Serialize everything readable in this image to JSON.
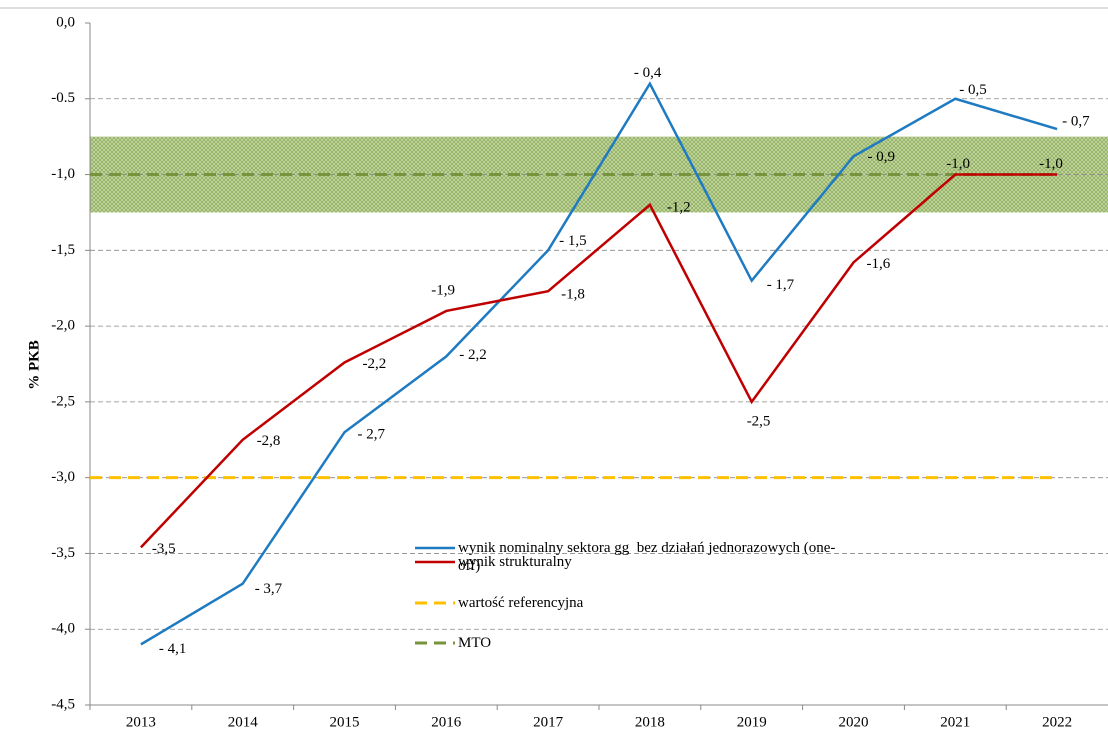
{
  "chart_data": {
    "type": "line",
    "y_label": "% PKB",
    "categories": [
      "2013",
      "2014",
      "2015",
      "2016",
      "2017",
      "2018",
      "2019",
      "2020",
      "2021",
      "2022"
    ],
    "series": [
      {
        "name": "wynik nominalny sektora gg  bez działań jednorazowych (one-off)",
        "color": "#1f7bc1",
        "values": [
          -4.1,
          -3.7,
          -2.7,
          -2.2,
          -1.5,
          -0.4,
          -1.7,
          -0.88,
          -0.5,
          -0.7
        ],
        "value_labels": [
          "- 4,1",
          "- 3,7",
          "- 2,7",
          "- 2,2",
          "- 1,5",
          "- 0,4",
          "- 1,7",
          "- 0,9",
          "- 0,5",
          "- 0,7"
        ]
      },
      {
        "name": "wynik strukturalny",
        "color": "#c00000",
        "values": [
          -3.46,
          -2.75,
          -2.24,
          -1.9,
          -1.77,
          -1.2,
          -2.5,
          -1.58,
          -1.0,
          -1.0
        ],
        "value_labels": [
          "-3,5",
          "-2,8",
          "-2,2",
          "-1,9",
          "-1,8",
          "-1,2",
          "-2,5",
          "-1,6",
          "-1,0",
          "-1,0"
        ]
      }
    ],
    "reference_lines": [
      {
        "name": "wartość referencyjna",
        "value": -3.0,
        "color": "#ffc000"
      },
      {
        "name": "MTO",
        "value": -1.0,
        "color": "#77933c"
      }
    ],
    "band": {
      "from": -0.75,
      "to": -1.25,
      "color": "#a9c47f"
    },
    "ylim": [
      -4.5,
      0
    ],
    "yticks": [
      {
        "value": 0,
        "label": "0,0"
      },
      {
        "value": -0.5,
        "label": "-0.5"
      },
      {
        "value": -1.0,
        "label": "-1,0"
      },
      {
        "value": -1.5,
        "label": "-1,5"
      },
      {
        "value": -2.0,
        "label": "-2,0"
      },
      {
        "value": -2.5,
        "label": "-2,5"
      },
      {
        "value": -3.0,
        "label": "-3,0"
      },
      {
        "value": -3.5,
        "label": "-3,5"
      },
      {
        "value": -4.0,
        "label": "-4,0"
      },
      {
        "value": -4.5,
        "label": "-4,5"
      }
    ],
    "grid": true
  }
}
